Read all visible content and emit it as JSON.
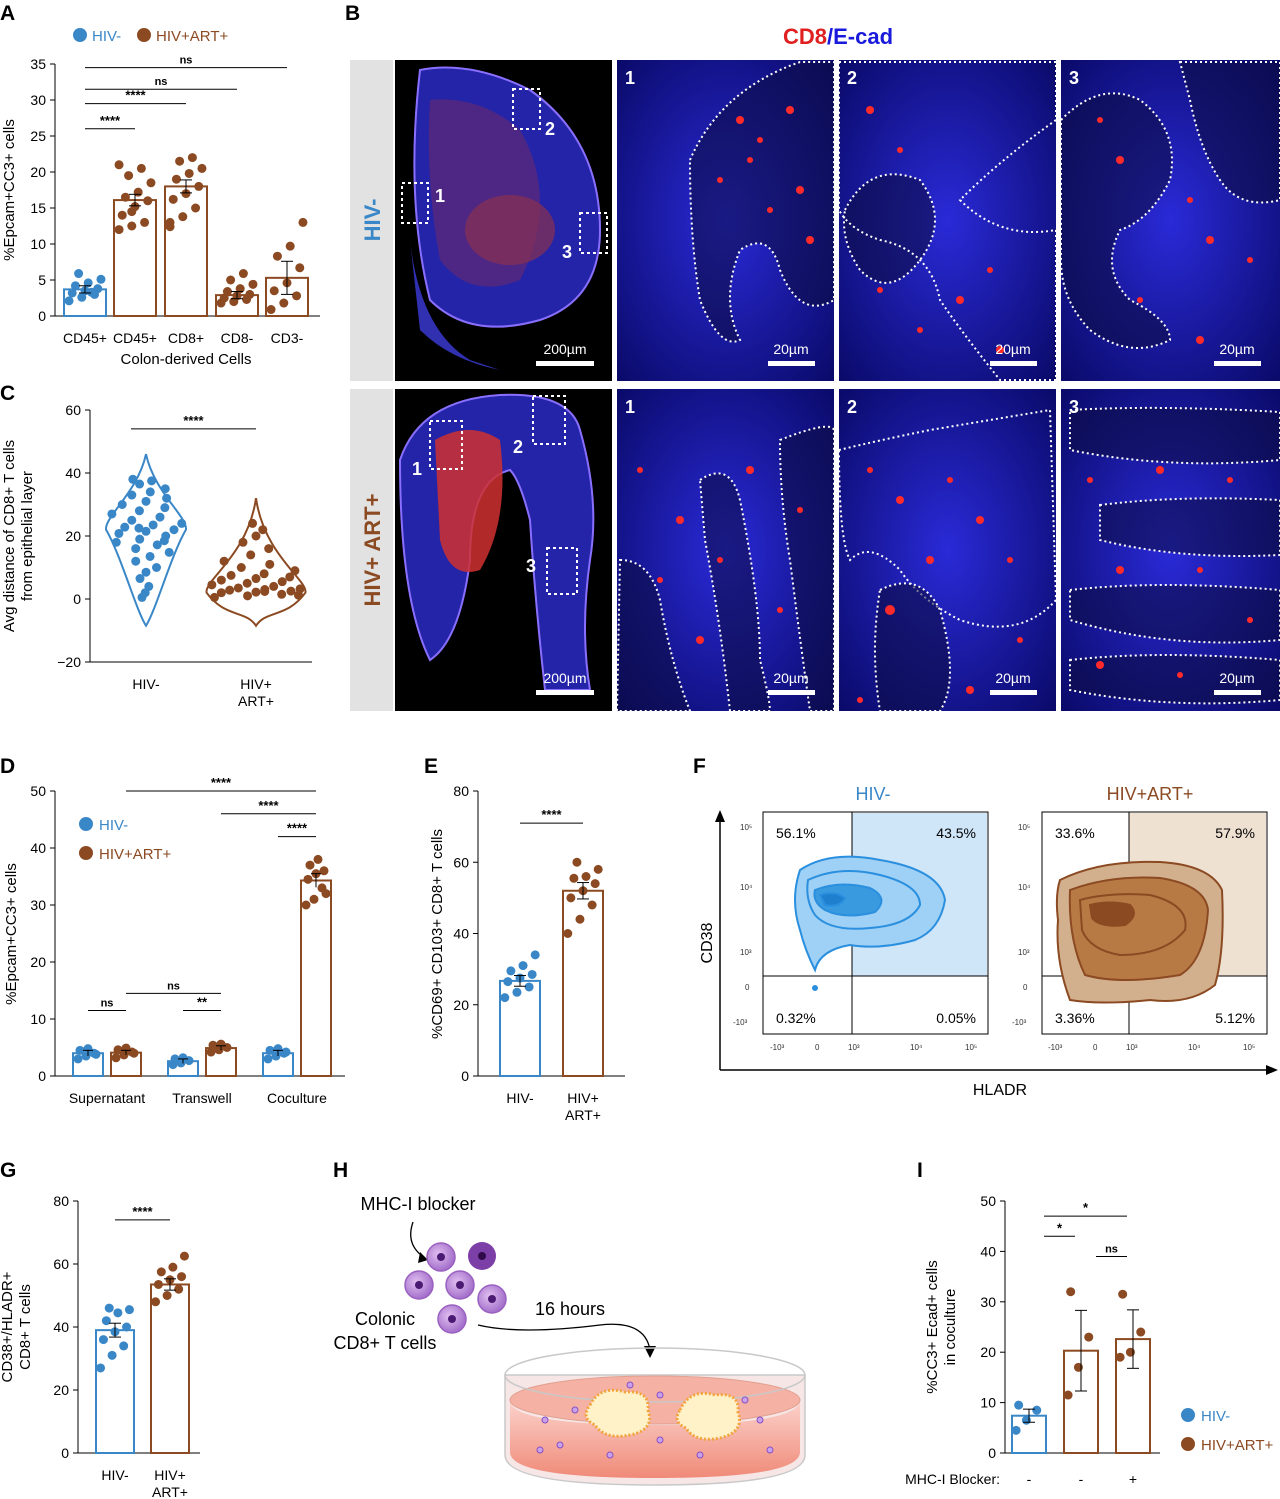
{
  "colors": {
    "hiv_neg": "#3a87c8",
    "hiv_pos": "#8b4a22",
    "cd8": "#e02020",
    "ecad": "#1a1adc",
    "sig": "#000000"
  },
  "panel_labels": {
    "A": "A",
    "B": "B",
    "C": "C",
    "D": "D",
    "E": "E",
    "F": "F",
    "G": "G",
    "H": "H",
    "I": "I"
  },
  "legend": {
    "hiv_neg": "HIV-",
    "hiv_pos": "HIV+ART+",
    "hiv_pos_a": "HIV+ART+"
  },
  "chart_data": [
    {
      "panel": "A",
      "type": "bar",
      "ylabel": "%Epcam+CC3+ cells",
      "xlabel": "Colon-derived Cells",
      "categories": [
        "CD45+",
        "CD45+",
        "CD8+",
        "CD8-",
        "CD3-"
      ],
      "ylim": [
        0,
        35
      ],
      "yticks": [
        0,
        5,
        10,
        15,
        20,
        25,
        30,
        35
      ],
      "values": [
        3.7,
        16.1,
        18.0,
        2.9,
        5.3
      ],
      "errors": [
        0.5,
        0.8,
        0.9,
        0.5,
        2.3
      ],
      "group": [
        "hiv_neg",
        "hiv_pos",
        "hiv_pos",
        "hiv_pos",
        "hiv_pos"
      ],
      "points": [
        [
          2.1,
          2.6,
          3.0,
          3.2,
          3.5,
          3.8,
          4.2,
          4.6,
          5.1,
          5.9,
          3.3
        ],
        [
          12.0,
          12.5,
          13.0,
          14.0,
          15.2,
          16.0,
          16.5,
          17.2,
          18.5,
          19.5,
          20.5,
          21.0,
          14.5
        ],
        [
          12.4,
          13.8,
          15.0,
          16.2,
          17.0,
          18.0,
          19.0,
          19.8,
          20.5,
          21.5,
          22.0,
          13.0
        ],
        [
          1.8,
          2.0,
          2.3,
          2.5,
          2.8,
          3.0,
          3.4,
          3.8,
          4.4,
          5.0,
          5.9
        ],
        [
          0.9,
          1.8,
          2.8,
          3.5,
          4.6,
          6.7,
          8.3,
          9.7,
          13.0
        ]
      ],
      "comparisons": [
        {
          "from": 0,
          "to": 1,
          "label": "****",
          "y": 26
        },
        {
          "from": 0,
          "to": 2,
          "label": "****",
          "y": 29.5
        },
        {
          "from": 0,
          "to": 3,
          "label": "ns",
          "y": 31.5
        },
        {
          "from": 0,
          "to": 4,
          "label": "ns",
          "y": 34.5
        }
      ]
    },
    {
      "panel": "C",
      "type": "scatter",
      "ylabel": "Avg distance of CD8+ T cells from epithelial layer",
      "categories": [
        "HIV-",
        "HIV+ ART+"
      ],
      "ylim": [
        -20,
        60
      ],
      "yticks": [
        -20,
        0,
        20,
        40,
        60
      ],
      "series": [
        {
          "group": "hiv_neg",
          "values": [
            0.5,
            2.0,
            4.0,
            6.5,
            8.5,
            10.0,
            12.0,
            13.5,
            14.8,
            16.0,
            17.2,
            18.0,
            19.0,
            20.0,
            20.8,
            21.5,
            22.0,
            22.8,
            23.5,
            24.0,
            25.0,
            26.0,
            27.0,
            28.0,
            29.0,
            30.0,
            31.0,
            32.0,
            33.0,
            34.0,
            35.0,
            36.5,
            37.5,
            38.0,
            22.5,
            18.5
          ]
        },
        {
          "group": "hiv_pos",
          "values": [
            0.5,
            1.0,
            1.5,
            2.0,
            2.2,
            2.5,
            2.8,
            3.0,
            3.2,
            3.5,
            4.0,
            4.5,
            5.0,
            5.5,
            6.0,
            6.5,
            7.0,
            7.5,
            8.0,
            9.0,
            10.0,
            11.0,
            12.0,
            14.0,
            16.0,
            18.0,
            20.0,
            22.0,
            24.0,
            2.4,
            1.2
          ]
        }
      ],
      "comparisons": [
        {
          "from": 0,
          "to": 1,
          "label": "****",
          "y": 54
        }
      ]
    },
    {
      "panel": "D",
      "type": "bar",
      "ylabel": "%Epcam+CC3+ cells",
      "categories": [
        "Supernatant",
        "Transwell",
        "Coculture"
      ],
      "ylim": [
        0,
        50
      ],
      "yticks": [
        0,
        10,
        20,
        30,
        40,
        50
      ],
      "series": [
        {
          "group": "hiv_neg",
          "values": [
            4.0,
            2.6,
            4.0
          ],
          "errors": [
            0.5,
            0.4,
            0.5
          ],
          "points": [
            [
              3.0,
              3.5,
              4.0,
              4.5,
              4.8,
              3.8
            ],
            [
              2.0,
              2.3,
              2.7,
              3.0,
              3.2
            ],
            [
              3.0,
              3.5,
              4.0,
              4.5,
              4.8,
              4.2
            ]
          ]
        },
        {
          "group": "hiv_pos",
          "values": [
            4.1,
            4.9,
            34.3
          ],
          "errors": [
            0.4,
            0.4,
            1.2
          ],
          "points": [
            [
              3.2,
              3.7,
              4.2,
              4.6,
              4.9,
              4.0
            ],
            [
              4.2,
              4.6,
              5.0,
              5.4,
              5.6
            ],
            [
              30.0,
              31.0,
              33.0,
              34.5,
              35.5,
              36.0,
              37.0,
              38.0,
              32.0
            ]
          ]
        }
      ],
      "comparisons": [
        {
          "from": [
            0,
            0
          ],
          "to": [
            0,
            1
          ],
          "label": "ns",
          "y": 11.5
        },
        {
          "from": [
            1,
            0
          ],
          "to": [
            1,
            1
          ],
          "label": "**",
          "y": 11.5
        },
        {
          "from": [
            0,
            1
          ],
          "to": [
            1,
            1
          ],
          "label": "ns",
          "y": 14.5
        },
        {
          "from": [
            2,
            0
          ],
          "to": [
            2,
            1
          ],
          "label": "****",
          "y": 42
        },
        {
          "from": [
            1,
            1
          ],
          "to": [
            2,
            1
          ],
          "label": "****",
          "y": 46
        },
        {
          "from": [
            0,
            1
          ],
          "to": [
            2,
            1
          ],
          "label": "****",
          "y": 50
        }
      ]
    },
    {
      "panel": "E",
      "type": "bar",
      "ylabel": "%CD69+ CD103+ CD8+ T cells",
      "categories": [
        "HIV-",
        "HIV+ ART+"
      ],
      "ylim": [
        0,
        80
      ],
      "yticks": [
        0,
        20,
        40,
        60,
        80
      ],
      "values": [
        26.7,
        52.0
      ],
      "errors": [
        1.5,
        2.3
      ],
      "group": [
        "hiv_neg",
        "hiv_pos"
      ],
      "points": [
        [
          22.0,
          23.5,
          25.0,
          26.5,
          27.5,
          28.5,
          29.5,
          31.0,
          34.0
        ],
        [
          40.0,
          44.0,
          48.0,
          50.0,
          52.0,
          54.0,
          55.5,
          56.0,
          58.0,
          60.0
        ]
      ],
      "comparisons": [
        {
          "from": 0,
          "to": 1,
          "label": "****",
          "y": 71
        }
      ]
    },
    {
      "panel": "G",
      "type": "bar",
      "ylabel": "CD38+/HLADR+ CD8+ T cells",
      "categories": [
        "HIV-",
        "HIV+ ART+"
      ],
      "ylim": [
        0,
        80
      ],
      "yticks": [
        0,
        20,
        40,
        60,
        80
      ],
      "values": [
        39.0,
        53.5
      ],
      "errors": [
        2.2,
        1.8
      ],
      "group": [
        "hiv_neg",
        "hiv_pos"
      ],
      "points": [
        [
          27.0,
          31.0,
          34.0,
          36.0,
          38.5,
          40.0,
          42.0,
          44.5,
          45.5,
          46.0
        ],
        [
          48.0,
          50.0,
          52.0,
          53.5,
          55.0,
          56.0,
          57.5,
          59.0,
          62.5
        ]
      ],
      "comparisons": [
        {
          "from": 0,
          "to": 1,
          "label": "****",
          "y": 74
        }
      ]
    },
    {
      "panel": "I",
      "type": "bar",
      "ylabel": "%CC3+ Ecad+ cells in coculture",
      "categories": [
        "-",
        "-",
        "+"
      ],
      "xlabel": "MHC-I Blocker:",
      "ylim": [
        0,
        50
      ],
      "yticks": [
        0,
        10,
        20,
        30,
        40,
        50
      ],
      "values": [
        7.4,
        20.3,
        22.6
      ],
      "errors": [
        1.3,
        8.0,
        5.8
      ],
      "group": [
        "hiv_neg",
        "hiv_pos",
        "hiv_pos"
      ],
      "points": [
        [
          4.5,
          6.5,
          8.5,
          9.5
        ],
        [
          11.5,
          17.0,
          23.0,
          32.0
        ],
        [
          19.0,
          20.0,
          24.0,
          31.5
        ]
      ],
      "comparisons": [
        {
          "from": 0,
          "to": 1,
          "label": "*",
          "y": 43
        },
        {
          "from": 0,
          "to": 2,
          "label": "*",
          "y": 47
        },
        {
          "from": 1,
          "to": 2,
          "label": "ns",
          "y": 39
        }
      ]
    }
  ],
  "panelB": {
    "title_cd8": "CD8",
    "title_sep": "/",
    "title_ecad": "E-cad",
    "row_hiv_neg": "HIV-",
    "row_hiv_pos": "HIV+ ART+",
    "roi": [
      "1",
      "2",
      "3"
    ],
    "scale_overview": "200µm",
    "scale_zoom": "20µm"
  },
  "panelF": {
    "title_neg": "HIV-",
    "title_pos": "HIV+ART+",
    "ylabel": "CD38",
    "xlabel": "HLADR",
    "quadrants_neg": [
      "56.1%",
      "43.5%",
      "0.32%",
      "0.05%"
    ],
    "quadrants_pos": [
      "33.6%",
      "57.9%",
      "3.36%",
      "5.12%"
    ],
    "yticks": [
      "10⁵",
      "10⁴",
      "10³",
      "0",
      "-10³"
    ],
    "xticks": [
      "-10³",
      "0",
      "10³",
      "10⁴",
      "10⁵"
    ]
  },
  "panelH": {
    "blocker": "MHC-I blocker",
    "cells_line1": "Colonic",
    "cells_line2": "CD8+ T cells",
    "time": "16 hours"
  }
}
